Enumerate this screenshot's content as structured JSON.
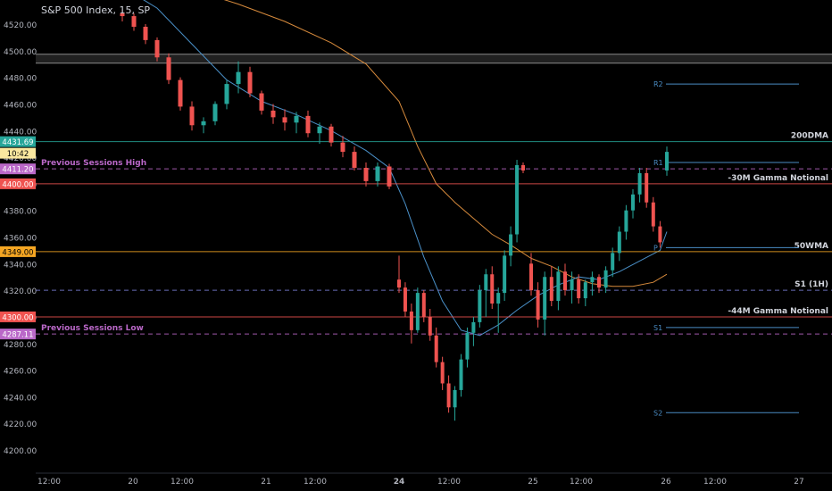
{
  "chart_data": {
    "type": "candlestick",
    "title": "S&P 500 Index, 15, SP",
    "y_ticks": [
      "4200.00",
      "4220.00",
      "4240.00",
      "4260.00",
      "4280.00",
      "4300.00",
      "4320.00",
      "4340.00",
      "4360.00",
      "4380.00",
      "4400.00",
      "4420.00",
      "4440.00",
      "4460.00",
      "4480.00",
      "4500.00",
      "4520.00"
    ],
    "x_ticks": [
      "12:00",
      "20",
      "12:00",
      "21",
      "12:00",
      "24",
      "12:00",
      "25",
      "12:00",
      "26",
      "12:00",
      "27"
    ],
    "x_ticks_bold": [
      "24"
    ],
    "colors": {
      "up": "#26a69a",
      "down": "#ef5350",
      "ma_fast": "#4a90c8",
      "ma_slow": "#d68a3c"
    },
    "candles": [
      {
        "o": 4528,
        "h": 4531,
        "l": 4522,
        "c": 4526
      },
      {
        "o": 4526,
        "h": 4528,
        "l": 4515,
        "c": 4518
      },
      {
        "o": 4518,
        "h": 4520,
        "l": 4505,
        "c": 4508
      },
      {
        "o": 4508,
        "h": 4510,
        "l": 4492,
        "c": 4495
      },
      {
        "o": 4495,
        "h": 4498,
        "l": 4475,
        "c": 4478
      },
      {
        "o": 4478,
        "h": 4480,
        "l": 4455,
        "c": 4458
      },
      {
        "o": 4458,
        "h": 4462,
        "l": 4440,
        "c": 4444
      },
      {
        "o": 4444,
        "h": 4450,
        "l": 4438,
        "c": 4447
      },
      {
        "o": 4447,
        "h": 4462,
        "l": 4444,
        "c": 4460
      },
      {
        "o": 4460,
        "h": 4478,
        "l": 4456,
        "c": 4475
      },
      {
        "o": 4475,
        "h": 4492,
        "l": 4468,
        "c": 4484
      },
      {
        "o": 4484,
        "h": 4488,
        "l": 4465,
        "c": 4468
      },
      {
        "o": 4468,
        "h": 4470,
        "l": 4452,
        "c": 4455
      },
      {
        "o": 4455,
        "h": 4460,
        "l": 4445,
        "c": 4450
      },
      {
        "o": 4450,
        "h": 4456,
        "l": 4440,
        "c": 4446
      },
      {
        "o": 4446,
        "h": 4454,
        "l": 4438,
        "c": 4451
      },
      {
        "o": 4451,
        "h": 4455,
        "l": 4435,
        "c": 4438
      },
      {
        "o": 4438,
        "h": 4446,
        "l": 4430,
        "c": 4443
      },
      {
        "o": 4443,
        "h": 4445,
        "l": 4428,
        "c": 4431
      },
      {
        "o": 4431,
        "h": 4436,
        "l": 4420,
        "c": 4424
      },
      {
        "o": 4424,
        "h": 4428,
        "l": 4410,
        "c": 4412
      },
      {
        "o": 4412,
        "h": 4416,
        "l": 4398,
        "c": 4402
      },
      {
        "o": 4402,
        "h": 4416,
        "l": 4398,
        "c": 4413
      },
      {
        "o": 4413,
        "h": 4415,
        "l": 4396,
        "c": 4398
      },
      {
        "o": 4328,
        "h": 4346,
        "l": 4318,
        "c": 4322
      },
      {
        "o": 4322,
        "h": 4326,
        "l": 4300,
        "c": 4304
      },
      {
        "o": 4304,
        "h": 4310,
        "l": 4280,
        "c": 4290
      },
      {
        "o": 4290,
        "h": 4322,
        "l": 4288,
        "c": 4318
      },
      {
        "o": 4318,
        "h": 4320,
        "l": 4296,
        "c": 4300
      },
      {
        "o": 4300,
        "h": 4306,
        "l": 4282,
        "c": 4286
      },
      {
        "o": 4286,
        "h": 4292,
        "l": 4262,
        "c": 4266
      },
      {
        "o": 4266,
        "h": 4270,
        "l": 4245,
        "c": 4250
      },
      {
        "o": 4250,
        "h": 4256,
        "l": 4228,
        "c": 4232
      },
      {
        "o": 4232,
        "h": 4248,
        "l": 4222,
        "c": 4245
      },
      {
        "o": 4245,
        "h": 4272,
        "l": 4240,
        "c": 4268
      },
      {
        "o": 4268,
        "h": 4292,
        "l": 4262,
        "c": 4288
      },
      {
        "o": 4288,
        "h": 4300,
        "l": 4278,
        "c": 4296
      },
      {
        "o": 4296,
        "h": 4324,
        "l": 4292,
        "c": 4320
      },
      {
        "o": 4320,
        "h": 4336,
        "l": 4300,
        "c": 4332
      },
      {
        "o": 4332,
        "h": 4338,
        "l": 4306,
        "c": 4310
      },
      {
        "o": 4310,
        "h": 4322,
        "l": 4288,
        "c": 4318
      },
      {
        "o": 4318,
        "h": 4350,
        "l": 4312,
        "c": 4346
      },
      {
        "o": 4346,
        "h": 4368,
        "l": 4338,
        "c": 4362
      },
      {
        "o": 4362,
        "h": 4418,
        "l": 4356,
        "c": 4414
      },
      {
        "o": 4414,
        "h": 4416,
        "l": 4408,
        "c": 4410
      },
      {
        "o": 4340,
        "h": 4348,
        "l": 4316,
        "c": 4320
      },
      {
        "o": 4320,
        "h": 4326,
        "l": 4292,
        "c": 4298
      },
      {
        "o": 4298,
        "h": 4334,
        "l": 4286,
        "c": 4330
      },
      {
        "o": 4330,
        "h": 4338,
        "l": 4308,
        "c": 4312
      },
      {
        "o": 4312,
        "h": 4338,
        "l": 4305,
        "c": 4334
      },
      {
        "o": 4334,
        "h": 4340,
        "l": 4316,
        "c": 4320
      },
      {
        "o": 4320,
        "h": 4334,
        "l": 4310,
        "c": 4328
      },
      {
        "o": 4328,
        "h": 4332,
        "l": 4310,
        "c": 4314
      },
      {
        "o": 4314,
        "h": 4328,
        "l": 4308,
        "c": 4326
      },
      {
        "o": 4326,
        "h": 4334,
        "l": 4316,
        "c": 4330
      },
      {
        "o": 4330,
        "h": 4332,
        "l": 4318,
        "c": 4322
      },
      {
        "o": 4322,
        "h": 4338,
        "l": 4318,
        "c": 4335
      },
      {
        "o": 4335,
        "h": 4352,
        "l": 4330,
        "c": 4348
      },
      {
        "o": 4348,
        "h": 4368,
        "l": 4342,
        "c": 4364
      },
      {
        "o": 4364,
        "h": 4384,
        "l": 4358,
        "c": 4380
      },
      {
        "o": 4380,
        "h": 4396,
        "l": 4374,
        "c": 4392
      },
      {
        "o": 4392,
        "h": 4412,
        "l": 4386,
        "c": 4408
      },
      {
        "o": 4408,
        "h": 4412,
        "l": 4382,
        "c": 4386
      },
      {
        "o": 4386,
        "h": 4390,
        "l": 4364,
        "c": 4368
      },
      {
        "o": 4368,
        "h": 4372,
        "l": 4352,
        "c": 4356
      },
      {
        "o": 4410,
        "h": 4428,
        "l": 4406,
        "c": 4424
      }
    ],
    "ma_fast": [
      {
        "i": 0,
        "v": 4548
      },
      {
        "i": 3,
        "v": 4532
      },
      {
        "i": 6,
        "v": 4505
      },
      {
        "i": 9,
        "v": 4478
      },
      {
        "i": 12,
        "v": 4462
      },
      {
        "i": 15,
        "v": 4452
      },
      {
        "i": 18,
        "v": 4440
      },
      {
        "i": 21,
        "v": 4425
      },
      {
        "i": 23,
        "v": 4412
      },
      {
        "i": 25,
        "v": 4385
      },
      {
        "i": 28,
        "v": 4345
      },
      {
        "i": 31,
        "v": 4312
      },
      {
        "i": 34,
        "v": 4290
      },
      {
        "i": 37,
        "v": 4286
      },
      {
        "i": 40,
        "v": 4294
      },
      {
        "i": 43,
        "v": 4305
      },
      {
        "i": 46,
        "v": 4316
      },
      {
        "i": 49,
        "v": 4324
      },
      {
        "i": 52,
        "v": 4330
      },
      {
        "i": 55,
        "v": 4328
      },
      {
        "i": 58,
        "v": 4334
      },
      {
        "i": 61,
        "v": 4342
      },
      {
        "i": 64,
        "v": 4350
      },
      {
        "i": 65,
        "v": 4364
      }
    ],
    "ma_slow": [
      {
        "i": 6,
        "v": 4546
      },
      {
        "i": 10,
        "v": 4535
      },
      {
        "i": 14,
        "v": 4522
      },
      {
        "i": 18,
        "v": 4506
      },
      {
        "i": 21,
        "v": 4490
      },
      {
        "i": 24,
        "v": 4462
      },
      {
        "i": 27,
        "v": 4428
      },
      {
        "i": 30,
        "v": 4400
      },
      {
        "i": 33,
        "v": 4386
      },
      {
        "i": 36,
        "v": 4374
      },
      {
        "i": 39,
        "v": 4362
      },
      {
        "i": 42,
        "v": 4354
      },
      {
        "i": 45,
        "v": 4344
      },
      {
        "i": 48,
        "v": 4338
      },
      {
        "i": 51,
        "v": 4330
      },
      {
        "i": 54,
        "v": 4325
      },
      {
        "i": 57,
        "v": 4323
      },
      {
        "i": 60,
        "v": 4323
      },
      {
        "i": 63,
        "v": 4326
      },
      {
        "i": 65,
        "v": 4332
      }
    ],
    "levels": [
      {
        "price": 4431.69,
        "color": "#26a69a",
        "style": "solid",
        "tag": "4431.69",
        "right_label": "200DMA",
        "left_label": ""
      },
      {
        "price": 4411.2,
        "color": "#ba68c8",
        "style": "dashed",
        "tag": "4411.20",
        "right_label": "",
        "left_label": "Previous Sessions High"
      },
      {
        "price": 4400,
        "color": "#ef5350",
        "style": "solid",
        "tag": "4400.00",
        "right_label": "-30M Gamma Notional",
        "left_label": ""
      },
      {
        "price": 4349,
        "color": "#f5a623",
        "style": "solid",
        "tag": "4349.00",
        "right_label": "50WMA",
        "left_label": ""
      },
      {
        "price": 4320,
        "color": "#7b7fd8",
        "style": "dashed",
        "tag": "",
        "right_label": "S1 (1H)",
        "left_label": ""
      },
      {
        "price": 4300,
        "color": "#ef5350",
        "style": "solid",
        "tag": "4300.00",
        "right_label": "-44M Gamma Notional",
        "left_label": ""
      },
      {
        "price": 4287.11,
        "color": "#ba68c8",
        "style": "dashed",
        "tag": "4287.11",
        "right_label": "",
        "left_label": "Previous Sessions Low"
      }
    ],
    "countdown_tag": "10:42",
    "pivots": [
      {
        "label": "R2",
        "price": 4475
      },
      {
        "label": "R1",
        "price": 4416
      },
      {
        "label": "P",
        "price": 4352
      },
      {
        "label": "S1",
        "price": 4292
      },
      {
        "label": "S2",
        "price": 4228
      }
    ],
    "resistance_band": [
      4492,
      4496
    ]
  }
}
